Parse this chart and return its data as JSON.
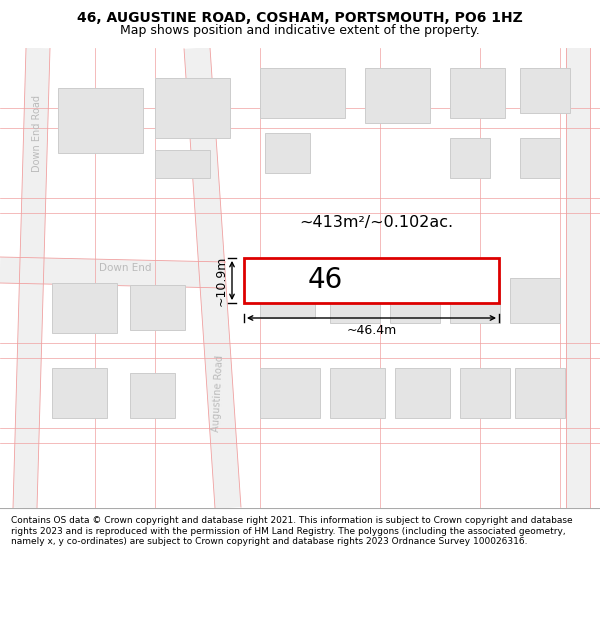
{
  "title_line1": "46, AUGUSTINE ROAD, COSHAM, PORTSMOUTH, PO6 1HZ",
  "title_line2": "Map shows position and indicative extent of the property.",
  "footer_text": "Contains OS data © Crown copyright and database right 2021. This information is subject to Crown copyright and database rights 2023 and is reproduced with the permission of HM Land Registry. The polygons (including the associated geometry, namely x, y co-ordinates) are subject to Crown copyright and database rights 2023 Ordnance Survey 100026316.",
  "map_bg": "#ffffff",
  "road_fill": "#f0f0f0",
  "street_line_color": "#f0a0a0",
  "building_fill": "#e4e4e4",
  "building_edge": "#cccccc",
  "plot_fill": "#ffffff",
  "plot_edge": "#dd0000",
  "annotation_color": "#111111",
  "area_text": "~413m²/~0.102ac.",
  "number_text": "46",
  "dim_width": "~46.4m",
  "dim_height": "~10.9m",
  "road_label_augustine": "Augustine Road",
  "road_label_downend": "Down End",
  "road_label_downendroad": "Down End Road",
  "road_gray": "#bbbbbb",
  "title_fontsize": 10,
  "subtitle_fontsize": 9,
  "footer_fontsize": 6.5
}
